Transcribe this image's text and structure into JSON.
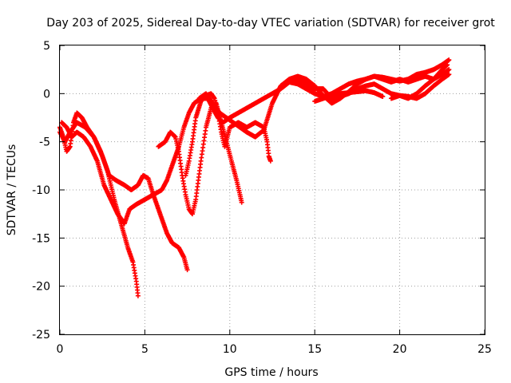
{
  "chart_data": {
    "type": "scatter",
    "title": "Day 203 of 2025, Sidereal Day-to-day VTEC variation (SDTVAR) for receiver grot",
    "xlabel": "GPS time / hours",
    "ylabel": "SDTVAR / TECUs",
    "xlim": [
      0,
      25
    ],
    "ylim": [
      -25,
      5
    ],
    "xticks": [
      0,
      5,
      10,
      15,
      20,
      25
    ],
    "yticks": [
      -25,
      -20,
      -15,
      -10,
      -5,
      0,
      5
    ],
    "grid": true,
    "marker": "+",
    "color": "#ff0000",
    "series": [
      {
        "values": [
          [
            0.0,
            -3.5
          ],
          [
            0.2,
            -4.5
          ],
          [
            0.4,
            -6.0
          ],
          [
            0.6,
            -5.5
          ],
          [
            0.8,
            -3.0
          ],
          [
            1.0,
            -2.0
          ],
          [
            1.3,
            -2.5
          ],
          [
            1.6,
            -3.5
          ],
          [
            2.0,
            -4.5
          ],
          [
            2.4,
            -6.0
          ],
          [
            2.8,
            -8.0
          ],
          [
            3.2,
            -11.0
          ],
          [
            3.6,
            -13.5
          ],
          [
            4.0,
            -16.0
          ],
          [
            4.3,
            -17.5
          ],
          [
            4.5,
            -19.5
          ],
          [
            4.6,
            -21.0
          ]
        ]
      },
      {
        "values": [
          [
            0.0,
            -4.0
          ],
          [
            0.3,
            -5.0
          ],
          [
            0.6,
            -4.0
          ],
          [
            1.0,
            -3.0
          ],
          [
            1.5,
            -3.5
          ],
          [
            2.0,
            -4.5
          ],
          [
            2.5,
            -6.5
          ],
          [
            2.9,
            -8.5
          ],
          [
            3.3,
            -9.0
          ],
          [
            3.8,
            -9.5
          ],
          [
            4.2,
            -10.0
          ],
          [
            4.6,
            -9.5
          ],
          [
            4.9,
            -8.5
          ],
          [
            5.2,
            -8.8
          ],
          [
            5.5,
            -10.5
          ],
          [
            5.9,
            -12.5
          ],
          [
            6.3,
            -14.5
          ],
          [
            6.6,
            -15.5
          ],
          [
            7.0,
            -16.0
          ],
          [
            7.3,
            -17.0
          ],
          [
            7.5,
            -18.3
          ]
        ]
      },
      {
        "values": [
          [
            0.1,
            -3.0
          ],
          [
            0.4,
            -3.5
          ],
          [
            0.7,
            -4.5
          ],
          [
            1.0,
            -4.0
          ],
          [
            1.4,
            -4.5
          ],
          [
            1.8,
            -5.5
          ],
          [
            2.2,
            -7.0
          ],
          [
            2.6,
            -9.5
          ],
          [
            3.0,
            -11.0
          ],
          [
            3.4,
            -12.5
          ],
          [
            3.8,
            -13.5
          ],
          [
            4.1,
            -12.0
          ],
          [
            4.5,
            -11.5
          ],
          [
            5.0,
            -11.0
          ],
          [
            5.5,
            -10.5
          ],
          [
            6.0,
            -10.0
          ],
          [
            6.3,
            -9.0
          ],
          [
            6.6,
            -7.5
          ],
          [
            7.0,
            -5.5
          ],
          [
            7.3,
            -3.5
          ],
          [
            7.6,
            -2.0
          ],
          [
            7.9,
            -1.0
          ],
          [
            8.3,
            -0.5
          ],
          [
            8.7,
            -0.5
          ],
          [
            9.0,
            -1.5
          ],
          [
            9.3,
            -2.5
          ],
          [
            9.6,
            -3.0
          ],
          [
            10.0,
            -2.5
          ],
          [
            10.5,
            -2.0
          ],
          [
            11.0,
            -1.5
          ],
          [
            11.5,
            -1.0
          ],
          [
            12.0,
            -0.5
          ],
          [
            12.5,
            0.0
          ],
          [
            13.0,
            0.5
          ],
          [
            13.5,
            1.2
          ],
          [
            14.0,
            1.5
          ],
          [
            14.5,
            1.0
          ],
          [
            15.0,
            0.5
          ],
          [
            15.5,
            0.5
          ],
          [
            16.0,
            -0.5
          ],
          [
            16.5,
            -0.3
          ],
          [
            17.0,
            0.0
          ],
          [
            17.5,
            0.5
          ],
          [
            18.0,
            0.8
          ],
          [
            18.5,
            1.0
          ],
          [
            19.0,
            0.5
          ],
          [
            19.5,
            0.0
          ],
          [
            20.0,
            -0.2
          ],
          [
            20.5,
            -0.5
          ],
          [
            21.0,
            0.0
          ],
          [
            21.5,
            0.8
          ],
          [
            22.0,
            1.5
          ],
          [
            22.5,
            2.5
          ],
          [
            22.8,
            3.0
          ]
        ]
      },
      {
        "values": [
          [
            5.8,
            -5.5
          ],
          [
            6.2,
            -5.0
          ],
          [
            6.5,
            -4.0
          ],
          [
            6.8,
            -4.5
          ],
          [
            7.0,
            -6.0
          ],
          [
            7.2,
            -8.5
          ],
          [
            7.4,
            -10.5
          ],
          [
            7.6,
            -12.0
          ],
          [
            7.8,
            -12.5
          ],
          [
            8.0,
            -11.0
          ],
          [
            8.3,
            -7.0
          ],
          [
            8.6,
            -3.5
          ],
          [
            8.9,
            -1.5
          ],
          [
            9.2,
            -1.0
          ],
          [
            9.5,
            -3.0
          ],
          [
            9.8,
            -5.0
          ],
          [
            10.1,
            -7.0
          ],
          [
            10.4,
            -9.0
          ],
          [
            10.6,
            -10.5
          ],
          [
            10.7,
            -11.3
          ]
        ]
      },
      {
        "values": [
          [
            7.4,
            -8.5
          ],
          [
            7.6,
            -7.0
          ],
          [
            7.8,
            -5.0
          ],
          [
            8.0,
            -2.5
          ],
          [
            8.3,
            -0.8
          ],
          [
            8.6,
            -0.2
          ],
          [
            8.9,
            0.0
          ],
          [
            9.1,
            -0.5
          ],
          [
            9.3,
            -2.0
          ],
          [
            9.5,
            -4.0
          ],
          [
            9.7,
            -5.5
          ],
          [
            10.0,
            -3.5
          ],
          [
            10.5,
            -3.0
          ],
          [
            11.0,
            -3.5
          ],
          [
            11.5,
            -3.0
          ],
          [
            12.0,
            -3.5
          ],
          [
            12.2,
            -5.0
          ],
          [
            12.3,
            -6.5
          ],
          [
            12.4,
            -7.0
          ]
        ]
      },
      {
        "values": [
          [
            8.2,
            -0.5
          ],
          [
            8.6,
            0.0
          ],
          [
            9.0,
            -1.0
          ],
          [
            9.4,
            -2.0
          ],
          [
            9.8,
            -2.5
          ],
          [
            10.2,
            -3.0
          ],
          [
            10.6,
            -3.5
          ],
          [
            11.0,
            -4.0
          ],
          [
            11.5,
            -4.5
          ],
          [
            12.0,
            -3.8
          ],
          [
            12.5,
            -1.0
          ],
          [
            13.0,
            0.8
          ],
          [
            13.5,
            1.5
          ],
          [
            14.0,
            1.8
          ],
          [
            14.5,
            1.5
          ],
          [
            15.0,
            0.8
          ],
          [
            15.5,
            -0.2
          ],
          [
            16.0,
            -1.0
          ],
          [
            16.5,
            -0.5
          ],
          [
            17.0,
            0.2
          ],
          [
            17.5,
            1.0
          ],
          [
            18.0,
            1.5
          ],
          [
            18.5,
            1.8
          ],
          [
            19.0,
            1.5
          ],
          [
            19.5,
            1.2
          ],
          [
            20.0,
            1.5
          ],
          [
            20.5,
            1.2
          ],
          [
            21.0,
            1.5
          ],
          [
            21.5,
            1.8
          ],
          [
            22.0,
            1.5
          ],
          [
            22.5,
            2.0
          ],
          [
            22.9,
            2.5
          ]
        ]
      },
      {
        "values": [
          [
            15.0,
            -0.8
          ],
          [
            15.5,
            -0.5
          ],
          [
            16.0,
            -0.2
          ],
          [
            16.5,
            0.0
          ],
          [
            17.0,
            0.1
          ],
          [
            17.5,
            0.2
          ],
          [
            18.0,
            0.3
          ],
          [
            18.5,
            0.1
          ],
          [
            19.0,
            -0.3
          ]
        ]
      },
      {
        "values": [
          [
            19.5,
            -0.5
          ],
          [
            20.0,
            -0.2
          ],
          [
            20.5,
            -0.3
          ],
          [
            21.0,
            -0.5
          ],
          [
            21.5,
            0.0
          ],
          [
            22.0,
            0.8
          ],
          [
            22.5,
            1.5
          ],
          [
            22.9,
            2.0
          ]
        ]
      },
      {
        "values": [
          [
            13.5,
            1.2
          ],
          [
            14.0,
            1.0
          ],
          [
            14.5,
            0.5
          ],
          [
            15.0,
            0.0
          ],
          [
            15.5,
            -0.3
          ],
          [
            16.0,
            0.0
          ],
          [
            16.5,
            0.5
          ],
          [
            17.0,
            1.0
          ],
          [
            17.5,
            1.3
          ],
          [
            18.0,
            1.5
          ],
          [
            18.5,
            1.8
          ],
          [
            19.0,
            1.7
          ],
          [
            19.5,
            1.5
          ],
          [
            20.0,
            1.3
          ],
          [
            20.5,
            1.5
          ],
          [
            21.0,
            2.0
          ],
          [
            21.5,
            2.2
          ],
          [
            22.0,
            2.5
          ],
          [
            22.5,
            3.0
          ],
          [
            22.9,
            3.5
          ]
        ]
      }
    ]
  }
}
